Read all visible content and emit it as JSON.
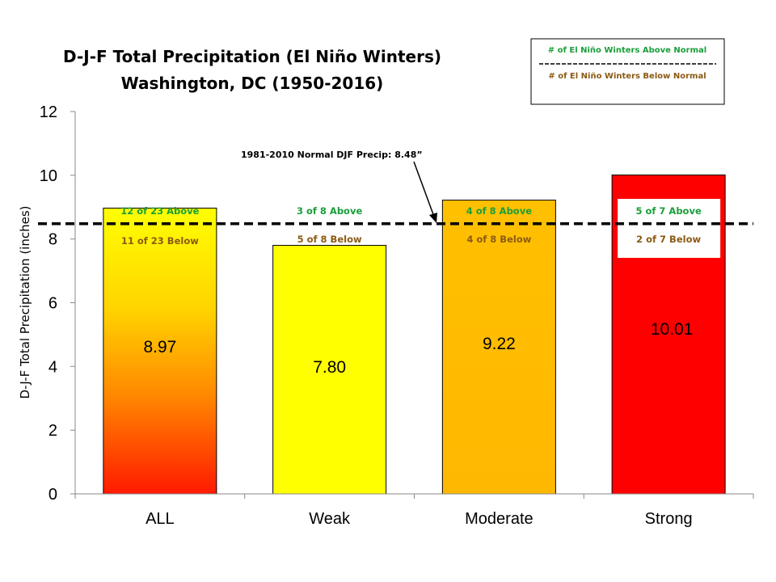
{
  "chart_data": {
    "type": "bar",
    "title": "D-J-F Total Precipitation (El Niño Winters)",
    "subtitle": "Washington, DC (1950-2016)",
    "ylabel": "D-J-F Total Precipitation (inches)",
    "xlabel": "",
    "ylim": [
      0,
      12
    ],
    "yticks": [
      "0",
      "2",
      "4",
      "6",
      "8",
      "10",
      "12"
    ],
    "categories": [
      "ALL",
      "Weak",
      "Moderate",
      "Strong"
    ],
    "values": [
      8.97,
      7.8,
      9.22,
      10.01
    ],
    "value_labels": [
      "8.97",
      "7.80",
      "9.22",
      "10.01"
    ],
    "above_labels": [
      "12 of 23 Above",
      "3 of 8 Above",
      "4 of 8 Above",
      "5 of 7 Above"
    ],
    "below_labels": [
      "11 of 23 Below",
      "5 of 8 Below",
      "4 of 8 Below",
      "2 of 7 Below"
    ],
    "bar_fills": [
      "gradient-yellow-red",
      "#ffff00",
      "gradient-orange",
      "#ff0000"
    ],
    "normal_line": {
      "value": 8.48,
      "label": "1981-2010  Normal DJF Precip: 8.48”"
    },
    "legend": {
      "placement": "top-right",
      "above_text": "# of El Niño Winters Above Normal",
      "below_text": "# of El Niño Winters Below Normal",
      "separator": "-----------------------------------"
    },
    "grid": false,
    "colors": {
      "above": "#1a9e3a",
      "below": "#8b5a14",
      "normal_line": "#000000"
    }
  }
}
